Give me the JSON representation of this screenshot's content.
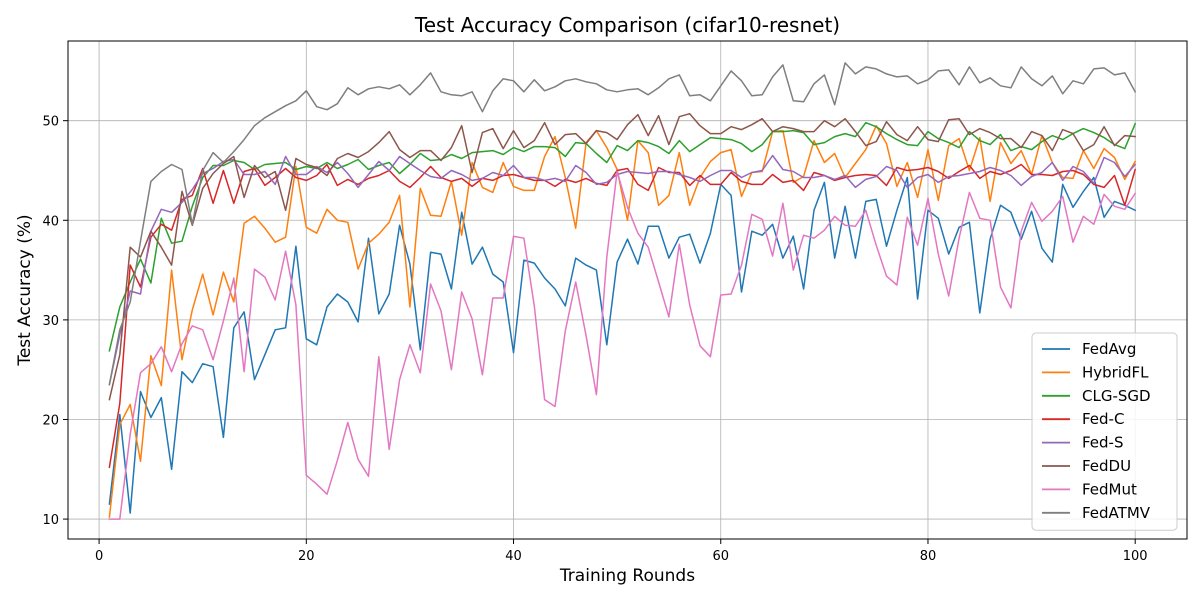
{
  "chart_data": {
    "type": "line",
    "title": "Test Accuracy Comparison (cifar10-resnet)",
    "xlabel": "Training Rounds",
    "ylabel": "Test Accuracy (%)",
    "xlim": [
      -3,
      105
    ],
    "ylim": [
      8,
      58
    ],
    "xticks": [
      0,
      20,
      40,
      60,
      80,
      100
    ],
    "yticks": [
      10,
      20,
      30,
      40,
      50
    ],
    "grid": true,
    "legend_position": "lower-right",
    "x": [
      1,
      2,
      3,
      4,
      5,
      6,
      7,
      8,
      9,
      10,
      11,
      12,
      13,
      14,
      15,
      16,
      17,
      18,
      19,
      20,
      21,
      22,
      23,
      24,
      25,
      26,
      27,
      28,
      29,
      30,
      31,
      32,
      33,
      34,
      35,
      36,
      37,
      38,
      39,
      40,
      41,
      42,
      43,
      44,
      45,
      46,
      47,
      48,
      49,
      50,
      51,
      52,
      53,
      54,
      55,
      56,
      57,
      58,
      59,
      60,
      61,
      62,
      63,
      64,
      65,
      66,
      67,
      68,
      69,
      70,
      71,
      72,
      73,
      74,
      75,
      76,
      77,
      78,
      79,
      80,
      81,
      82,
      83,
      84,
      85,
      86,
      87,
      88,
      89,
      90,
      91,
      92,
      93,
      94,
      95,
      96,
      97,
      98,
      99,
      100
    ],
    "series": [
      {
        "name": "FedAvg",
        "color": "#1f77b4",
        "values": [
          11.5,
          20.5,
          10.6,
          22.8,
          20.2,
          22.2,
          15.0,
          24.8,
          23.7,
          25.6,
          25.3,
          18.2,
          29.2,
          30.8,
          24.0,
          26.5,
          29.0,
          29.2,
          37.4,
          28.1,
          27.5,
          31.3,
          32.6,
          31.8,
          29.8,
          38.2,
          30.6,
          32.6,
          39.5,
          35.6,
          27.0,
          36.8,
          36.6,
          33.1,
          40.8,
          35.6,
          37.3,
          34.6,
          33.8,
          26.7,
          36.0,
          35.7,
          34.2,
          33.1,
          31.4,
          36.2,
          35.5,
          35.0,
          27.5,
          35.8,
          38.1,
          35.6,
          39.4,
          39.4,
          36.2,
          38.3,
          38.6,
          35.7,
          38.7,
          43.6,
          42.5,
          32.8,
          38.9,
          38.5,
          39.6,
          36.2,
          38.4,
          33.1,
          41.0,
          43.8,
          36.2,
          41.4,
          36.2,
          41.9,
          42.1,
          37.4,
          41.0,
          44.3,
          32.1,
          41.0,
          40.2,
          36.6,
          39.3,
          39.8,
          30.7,
          38.1,
          41.5,
          40.8,
          38.1,
          40.9,
          37.2,
          35.8,
          43.6,
          41.3,
          42.9,
          44.3,
          40.3,
          41.9,
          41.5,
          41.0
        ]
      },
      {
        "name": "HybridFL",
        "color": "#ff7f0e",
        "values": [
          10.2,
          19.5,
          21.5,
          15.8,
          26.4,
          23.4,
          35.0,
          26.0,
          31.0,
          34.6,
          30.5,
          34.8,
          31.8,
          39.7,
          40.4,
          39.2,
          37.8,
          38.3,
          45.4,
          39.3,
          38.7,
          41.1,
          40.0,
          39.8,
          35.1,
          37.7,
          38.6,
          39.8,
          42.5,
          31.3,
          43.2,
          40.5,
          40.4,
          43.9,
          38.5,
          45.8,
          43.3,
          42.8,
          45.8,
          43.4,
          43.0,
          43.0,
          46.4,
          48.4,
          44.3,
          39.2,
          47.8,
          49.0,
          47.3,
          45.1,
          40.0,
          48.0,
          46.8,
          41.5,
          42.5,
          46.8,
          41.5,
          44.3,
          45.9,
          46.8,
          47.1,
          42.4,
          44.8,
          44.9,
          48.9,
          49.0,
          43.8,
          44.4,
          48.0,
          45.8,
          46.7,
          44.3,
          45.7,
          47.1,
          49.5,
          47.7,
          43.4,
          45.8,
          42.3,
          47.1,
          42.0,
          47.5,
          48.2,
          45.0,
          48.3,
          41.9,
          47.8,
          45.7,
          47.0,
          44.6,
          48.5,
          45.8,
          44.3,
          44.2,
          47.0,
          45.2,
          47.2,
          46.3,
          44.1,
          45.9
        ]
      },
      {
        "name": "CLG-SGD",
        "color": "#2ca02c",
        "values": [
          26.9,
          31.3,
          33.8,
          36.1,
          33.7,
          40.2,
          37.7,
          37.9,
          41.4,
          44.3,
          45.5,
          45.5,
          46.0,
          45.8,
          45.1,
          45.6,
          45.7,
          45.8,
          45.1,
          45.4,
          45.2,
          45.8,
          45.2,
          45.6,
          46.1,
          45.1,
          45.5,
          45.8,
          44.7,
          45.6,
          46.7,
          46.0,
          46.1,
          46.6,
          46.2,
          46.8,
          46.9,
          47.0,
          46.6,
          47.3,
          46.9,
          47.4,
          47.4,
          47.3,
          46.4,
          47.8,
          47.7,
          46.7,
          45.8,
          47.5,
          47.0,
          48.0,
          47.8,
          47.4,
          46.7,
          48.0,
          46.9,
          47.6,
          48.3,
          48.2,
          48.1,
          47.7,
          46.9,
          47.6,
          48.9,
          48.9,
          49.0,
          48.8,
          47.6,
          47.8,
          48.4,
          48.7,
          48.4,
          49.8,
          49.4,
          48.7,
          48.1,
          47.6,
          47.5,
          48.9,
          48.2,
          47.8,
          47.3,
          48.9,
          48.0,
          47.6,
          48.6,
          47.0,
          47.4,
          47.1,
          47.9,
          48.5,
          48.1,
          48.7,
          49.2,
          48.8,
          48.3,
          47.6,
          47.2,
          49.7
        ]
      },
      {
        "name": "Fed-C",
        "color": "#d62728",
        "values": [
          15.2,
          21.6,
          35.5,
          33.3,
          38.3,
          39.6,
          39.0,
          42.1,
          42.5,
          45.2,
          41.7,
          45.0,
          41.7,
          44.9,
          45.2,
          43.5,
          44.3,
          45.2,
          44.3,
          44.0,
          44.5,
          45.6,
          43.5,
          44.1,
          43.6,
          44.2,
          44.5,
          45.0,
          43.9,
          43.3,
          44.3,
          45.4,
          44.3,
          43.9,
          44.2,
          43.4,
          44.2,
          44.0,
          44.5,
          44.6,
          44.3,
          44.0,
          44.0,
          43.4,
          44.1,
          43.8,
          44.2,
          43.7,
          43.5,
          45.0,
          45.2,
          43.6,
          43.0,
          45.3,
          44.8,
          44.8,
          43.5,
          44.5,
          43.6,
          43.6,
          44.8,
          43.9,
          43.6,
          43.6,
          44.6,
          43.8,
          44.0,
          43.0,
          44.8,
          44.5,
          44.0,
          44.3,
          44.5,
          44.6,
          44.5,
          43.5,
          45.3,
          45.0,
          45.1,
          45.3,
          44.9,
          44.2,
          44.9,
          45.5,
          44.2,
          44.9,
          44.6,
          45.0,
          45.6,
          44.6,
          44.6,
          44.5,
          44.9,
          45.0,
          44.6,
          43.6,
          43.3,
          44.5,
          41.5,
          45.1
        ]
      },
      {
        "name": "Fed-S",
        "color": "#9467bd",
        "values": [
          23.5,
          28.5,
          32.9,
          32.6,
          38.9,
          41.1,
          40.8,
          41.8,
          43.1,
          44.7,
          45.2,
          45.9,
          46.1,
          44.6,
          44.6,
          44.9,
          43.6,
          46.4,
          44.6,
          44.6,
          45.4,
          44.8,
          45.8,
          44.7,
          43.3,
          44.6,
          45.9,
          45.0,
          46.4,
          45.7,
          45.0,
          44.4,
          44.2,
          45.0,
          44.6,
          44.0,
          44.2,
          44.8,
          44.5,
          45.5,
          44.3,
          44.3,
          44.0,
          44.2,
          43.9,
          45.5,
          44.8,
          43.6,
          43.8,
          44.6,
          44.9,
          44.8,
          44.7,
          44.9,
          44.9,
          44.6,
          44.3,
          43.9,
          44.5,
          45.0,
          45.0,
          44.3,
          44.8,
          45.0,
          46.5,
          45.1,
          44.9,
          44.3,
          44.3,
          44.5,
          44.1,
          44.5,
          43.3,
          44.1,
          44.4,
          45.4,
          45.0,
          43.3,
          44.3,
          44.6,
          43.8,
          44.4,
          44.5,
          44.7,
          44.9,
          45.3,
          45.0,
          44.5,
          43.5,
          44.4,
          44.8,
          45.8,
          44.0,
          45.4,
          44.9,
          43.7,
          46.3,
          45.8,
          44.4,
          45.6
        ]
      },
      {
        "name": "FedDU",
        "color": "#8c564b",
        "values": [
          22.0,
          26.5,
          37.3,
          36.3,
          38.9,
          37.3,
          35.5,
          42.9,
          39.5,
          43.2,
          44.7,
          45.7,
          46.4,
          42.3,
          45.5,
          44.3,
          44.9,
          41.0,
          46.2,
          45.6,
          45.3,
          44.5,
          46.2,
          46.7,
          46.3,
          46.9,
          47.8,
          48.9,
          47.1,
          46.3,
          47.0,
          47.0,
          46.0,
          47.3,
          49.5,
          44.8,
          48.8,
          49.2,
          47.2,
          49.0,
          47.3,
          48.0,
          49.8,
          47.6,
          48.6,
          48.7,
          47.7,
          49.0,
          48.8,
          48.1,
          49.6,
          50.6,
          48.5,
          50.5,
          47.6,
          50.4,
          50.7,
          49.5,
          48.7,
          48.7,
          49.4,
          49.1,
          49.6,
          50.2,
          48.9,
          49.4,
          49.2,
          48.9,
          48.9,
          50.0,
          49.4,
          50.2,
          48.9,
          47.5,
          47.9,
          49.9,
          48.6,
          48.0,
          49.4,
          48.1,
          47.9,
          50.1,
          50.2,
          48.6,
          49.2,
          48.8,
          48.2,
          48.2,
          47.3,
          48.9,
          48.5,
          47.0,
          49.1,
          48.7,
          47.0,
          47.6,
          49.4,
          47.5,
          48.5,
          48.4
        ]
      },
      {
        "name": "FedMut",
        "color": "#e377c2",
        "values": [
          10.0,
          10.0,
          18.5,
          24.7,
          25.6,
          27.3,
          24.8,
          27.6,
          29.4,
          29.0,
          26.0,
          29.9,
          34.2,
          24.8,
          35.1,
          34.3,
          32.0,
          36.9,
          31.5,
          14.4,
          13.5,
          12.5,
          15.9,
          19.7,
          16.0,
          14.3,
          26.3,
          17.0,
          24.0,
          27.5,
          24.7,
          33.6,
          30.9,
          25.0,
          32.8,
          30.1,
          24.5,
          32.2,
          32.2,
          38.4,
          38.2,
          31.4,
          22.0,
          21.3,
          28.9,
          33.8,
          28.4,
          22.5,
          36.3,
          44.9,
          41.3,
          38.7,
          37.3,
          33.8,
          30.3,
          37.6,
          31.5,
          27.4,
          26.3,
          32.5,
          32.6,
          35.5,
          40.6,
          40.1,
          36.4,
          41.7,
          35.0,
          38.5,
          38.2,
          39.0,
          40.4,
          39.5,
          39.4,
          41.0,
          37.5,
          34.4,
          33.5,
          40.3,
          37.5,
          42.2,
          36.6,
          32.4,
          38.2,
          42.8,
          40.2,
          40.0,
          33.3,
          31.2,
          38.9,
          41.8,
          39.9,
          40.9,
          42.4,
          37.8,
          40.4,
          39.6,
          42.6,
          41.4,
          41.1,
          42.7
        ]
      },
      {
        "name": "FedATMV",
        "color": "#7f7f7f",
        "values": [
          23.5,
          29.0,
          31.8,
          37.9,
          43.9,
          44.9,
          45.6,
          45.1,
          39.6,
          45.0,
          46.8,
          45.8,
          46.9,
          48.1,
          49.5,
          50.3,
          50.9,
          51.5,
          52.0,
          53.0,
          51.4,
          51.1,
          51.7,
          53.3,
          52.6,
          53.2,
          53.4,
          53.2,
          53.6,
          52.6,
          53.6,
          54.8,
          52.9,
          52.6,
          52.5,
          52.9,
          50.9,
          53.0,
          54.2,
          54.0,
          52.9,
          54.1,
          53.0,
          53.4,
          54.0,
          54.2,
          53.9,
          53.7,
          53.1,
          52.9,
          53.1,
          53.2,
          52.6,
          53.3,
          54.2,
          54.6,
          52.5,
          52.6,
          52.0,
          53.5,
          55.0,
          54.0,
          52.5,
          52.6,
          54.4,
          55.6,
          52.0,
          51.9,
          53.7,
          54.6,
          51.6,
          55.8,
          54.7,
          55.4,
          55.2,
          54.7,
          54.4,
          54.5,
          53.7,
          54.1,
          55.0,
          55.1,
          53.6,
          55.4,
          53.8,
          54.3,
          53.5,
          53.3,
          55.4,
          54.2,
          53.5,
          54.5,
          52.7,
          54.0,
          53.7,
          55.2,
          55.3,
          54.6,
          54.8,
          52.9
        ]
      }
    ]
  }
}
